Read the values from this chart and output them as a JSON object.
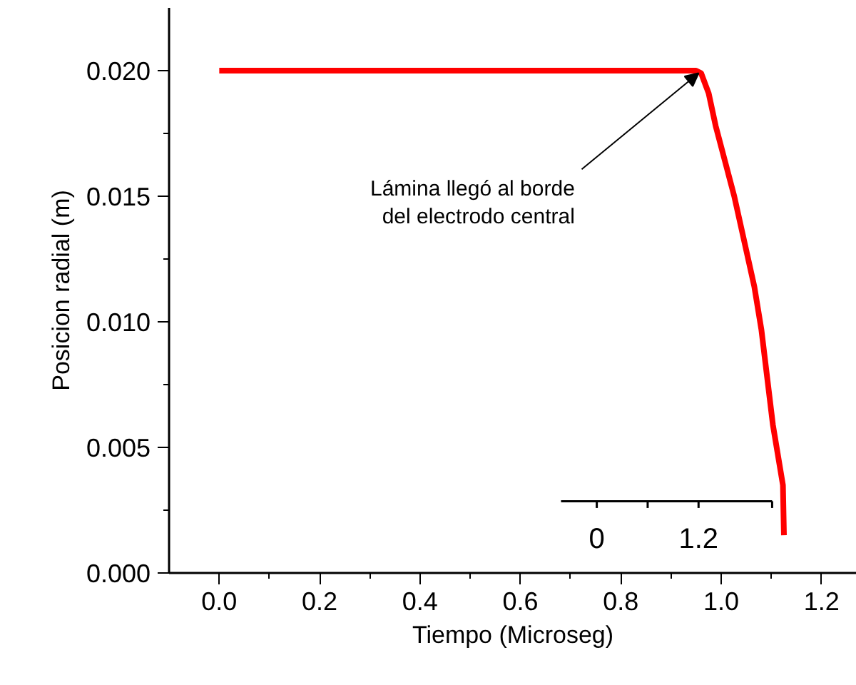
{
  "chart_data": {
    "type": "line",
    "xlabel": "Tiempo (Microseg)",
    "ylabel": "Posicion radial (m)",
    "series": [
      {
        "color": "#ff0000",
        "x": [
          0.0,
          0.5,
          0.93,
          0.95,
          0.96,
          0.975,
          0.989,
          1.026,
          1.066,
          1.08,
          1.103,
          1.123,
          1.125
        ],
        "values": [
          0.02,
          0.02,
          0.02,
          0.02,
          0.0199,
          0.0191,
          0.0178,
          0.015,
          0.0114,
          0.0097,
          0.0059,
          0.0035,
          0.0015
        ]
      }
    ],
    "annotations": [
      {
        "text": "Lámina llegó al borde\ndel electrodo central",
        "x": 0.955,
        "y": 0.0199
      },
      "0",
      "1.2"
    ],
    "xlim": [
      -0.1,
      1.27
    ],
    "ylim": [
      0.0,
      0.0225
    ],
    "xticks": [
      {
        "value": 0.0,
        "label": "0.0"
      },
      0.2,
      0.4,
      0.6,
      0.8,
      {
        "value": 1.0,
        "label": "1.0"
      },
      1.2
    ],
    "yticks": [
      {
        "value": 0.0,
        "label": "0.000"
      },
      0.005,
      {
        "value": 0.01,
        "label": "0.010"
      },
      0.015,
      {
        "value": 0.02,
        "label": "0.020"
      }
    ],
    "grid": false,
    "line_style": "solid",
    "marker": "none"
  }
}
